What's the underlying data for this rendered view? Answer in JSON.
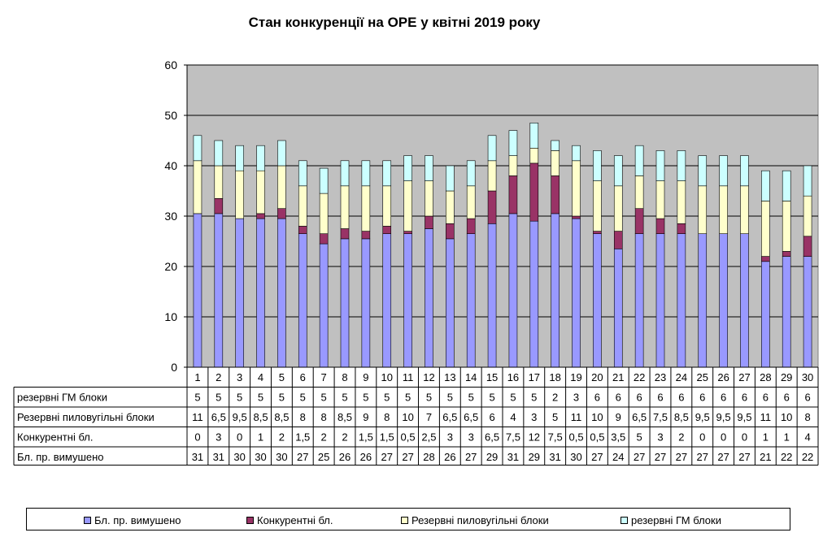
{
  "chart_data": {
    "type": "bar",
    "stacked": true,
    "title": "Стан конкуренції на ОРЕ  у квітні 2019 року",
    "ylim": [
      0,
      60
    ],
    "yticks": [
      "0",
      "10",
      "20",
      "30",
      "40",
      "50",
      "60"
    ],
    "grid": true,
    "legend_position": "bottom",
    "plot_background": "#c0c0c0",
    "categories": [
      "1",
      "2",
      "3",
      "4",
      "5",
      "6",
      "7",
      "8",
      "9",
      "10",
      "11",
      "12",
      "13",
      "14",
      "15",
      "16",
      "17",
      "18",
      "19",
      "20",
      "21",
      "22",
      "23",
      "24",
      "25",
      "26",
      "27",
      "28",
      "29",
      "30"
    ],
    "series": [
      {
        "name": "Бл. пр. вимушено",
        "color": "#9999ff",
        "values": [
          30.5,
          30.5,
          29.5,
          29.5,
          29.5,
          26.5,
          24.5,
          25.5,
          25.5,
          26.5,
          26.5,
          27.5,
          25.5,
          26.5,
          28.5,
          30.5,
          29,
          30.5,
          29.5,
          26.5,
          23.5,
          26.5,
          26.5,
          26.5,
          26.5,
          26.5,
          26.5,
          21,
          22,
          22
        ]
      },
      {
        "name": "Конкурентні бл.",
        "color": "#993366",
        "values": [
          0,
          3,
          0,
          1,
          2,
          1.5,
          2,
          2,
          1.5,
          1.5,
          0.5,
          2.5,
          3,
          3,
          6.5,
          7.5,
          11.5,
          7.5,
          0.5,
          0.5,
          3.5,
          5,
          3,
          2,
          0,
          0,
          0,
          1,
          1,
          4
        ]
      },
      {
        "name": "Резервні пиловугільні блоки",
        "color": "#ffffcc",
        "values": [
          10.5,
          6.5,
          9.5,
          8.5,
          8.5,
          8,
          8,
          8.5,
          9,
          8,
          10,
          7,
          6.5,
          6.5,
          6,
          4,
          3,
          5,
          11,
          10,
          9,
          6.5,
          7.5,
          8.5,
          9.5,
          9.5,
          9.5,
          11,
          10,
          8
        ]
      },
      {
        "name": "резервні ГМ блоки",
        "color": "#ccffff",
        "values": [
          5,
          5,
          5,
          5,
          5,
          5,
          5,
          5,
          5,
          5,
          5,
          5,
          5,
          5,
          5,
          5,
          5,
          2,
          3,
          6,
          6,
          6,
          6,
          6,
          6,
          6,
          6,
          6,
          6,
          6
        ]
      }
    ],
    "table_rows": [
      {
        "label": "резервні ГМ блоки",
        "cells": [
          "5",
          "5",
          "5",
          "5",
          "5",
          "5",
          "5",
          "5",
          "5",
          "5",
          "5",
          "5",
          "5",
          "5",
          "5",
          "5",
          "5",
          "2",
          "3",
          "6",
          "6",
          "6",
          "6",
          "6",
          "6",
          "6",
          "6",
          "6",
          "6",
          "6"
        ]
      },
      {
        "label": "Резервні пиловугільні  блоки",
        "cells": [
          "11",
          "6,5",
          "9,5",
          "8,5",
          "8,5",
          "8",
          "8",
          "8,5",
          "9",
          "8",
          "10",
          "7",
          "6,5",
          "6,5",
          "6",
          "4",
          "3",
          "5",
          "11",
          "10",
          "9",
          "6,5",
          "7,5",
          "8,5",
          "9,5",
          "9,5",
          "9,5",
          "11",
          "10",
          "8"
        ]
      },
      {
        "label": "Конкурентні  бл.",
        "cells": [
          "0",
          "3",
          "0",
          "1",
          "2",
          "1,5",
          "2",
          "2",
          "1,5",
          "1,5",
          "0,5",
          "2,5",
          "3",
          "3",
          "6,5",
          "7,5",
          "12",
          "7,5",
          "0,5",
          "0,5",
          "3,5",
          "5",
          "3",
          "2",
          "0",
          "0",
          "0",
          "1",
          "1",
          "4"
        ]
      },
      {
        "label": "Бл.  пр.  вимушено",
        "cells": [
          "31",
          "31",
          "30",
          "30",
          "30",
          "27",
          "25",
          "26",
          "26",
          "27",
          "27",
          "28",
          "26",
          "27",
          "29",
          "31",
          "29",
          "31",
          "30",
          "27",
          "24",
          "27",
          "27",
          "27",
          "27",
          "27",
          "27",
          "21",
          "22",
          "22"
        ]
      }
    ],
    "legend_order": [
      0,
      1,
      2,
      3
    ]
  }
}
